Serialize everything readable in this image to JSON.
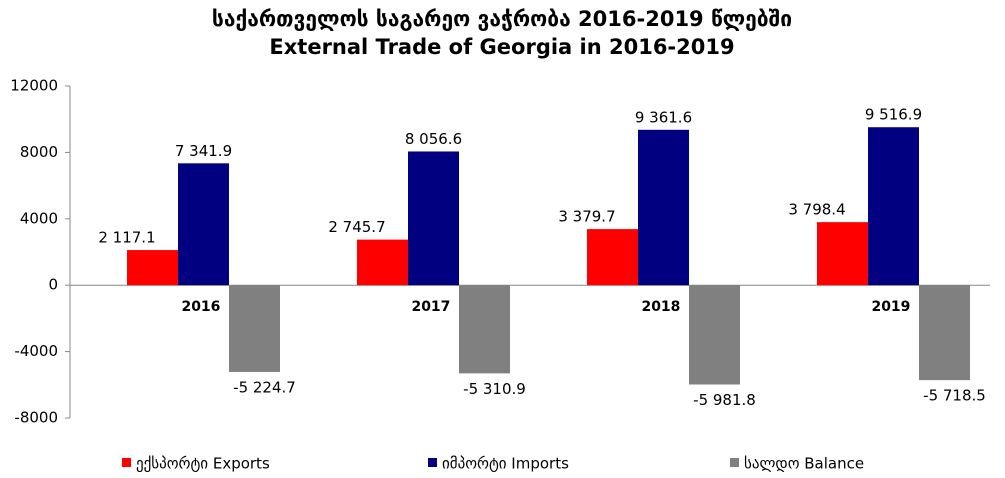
{
  "chart_data": {
    "type": "bar",
    "title": "საქართველოს საგარეო ვაჭრობა 2016-2019 წლებში",
    "subtitle": "External Trade of Georgia in 2016-2019",
    "categories": [
      "2016",
      "2017",
      "2018",
      "2019"
    ],
    "series": [
      {
        "name": "ექსპორტი Exports",
        "color": "#ff0000",
        "values": [
          2117.1,
          2745.7,
          3379.7,
          3798.4
        ],
        "value_labels": [
          "2 117.1",
          "2 745.7",
          "3 379.7",
          "3 798.4"
        ]
      },
      {
        "name": "იმპორტი Imports",
        "color": "#000080",
        "values": [
          7341.9,
          8056.6,
          9361.6,
          9516.9
        ],
        "value_labels": [
          "7 341.9",
          "8 056.6",
          "9 361.6",
          "9 516.9"
        ]
      },
      {
        "name": "სალდო Balance",
        "color": "#808080",
        "values": [
          -5224.7,
          -5310.9,
          -5981.8,
          -5718.5
        ],
        "value_labels": [
          "-5 224.7",
          "-5 310.9",
          "-5 981.8",
          "-5 718.5"
        ]
      }
    ],
    "ylim": [
      -8000,
      12000
    ],
    "yticks": [
      -8000,
      -4000,
      0,
      4000,
      8000,
      12000
    ],
    "grid": false,
    "legend": "bottom"
  }
}
